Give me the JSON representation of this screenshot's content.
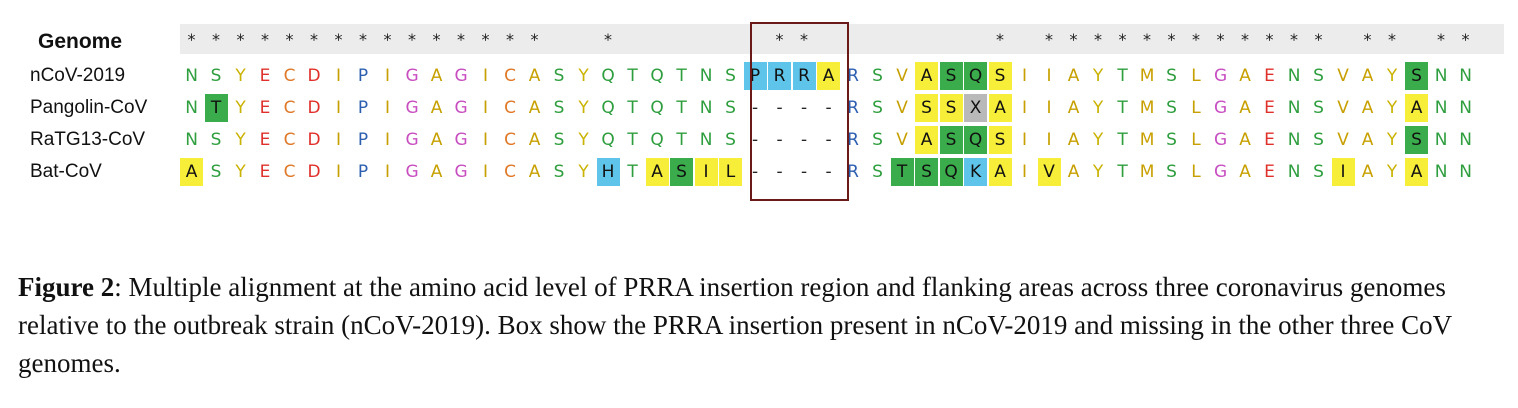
{
  "header_label": "Genome",
  "conservation": "***************  *      **       * ************ ** **",
  "sequences": [
    {
      "name": "nCoV-2019",
      "residues": "NSYECDIPIGAGICASYQTQTNSPRRARSVASQSIIAYTMSLGAENSVAYSNN"
    },
    {
      "name": "Pangolin-CoV",
      "residues": "NTYECDIPIGAGICASYQTQTNS----RSVSSXAIIAYTMSLGAENSVAYANN"
    },
    {
      "name": "RaTG13-CoV",
      "residues": "NSYECDIPIGAGICASYQTQTNS----RSVASQSIIAYTMSLGAENSVAYSNN"
    },
    {
      "name": "Bat-CoV",
      "residues": "ASYECDIPIGAGICASYHTASIL----RSTSQKAIVAYTMSLGAENSIAYANN"
    }
  ],
  "highlights": {
    "nCoV-2019": {
      "23": "blue",
      "24": "blue",
      "25": "blue",
      "26": "yellow",
      "30": "yellow",
      "31": "green",
      "32": "green",
      "33": "yellow",
      "50": "green"
    },
    "Pangolin-CoV": {
      "1": "green",
      "30": "yellow",
      "31": "yellow",
      "32": "grey",
      "33": "yellow",
      "50": "yellow"
    },
    "RaTG13-CoV": {
      "30": "yellow",
      "31": "green",
      "32": "green",
      "33": "yellow",
      "50": "green"
    },
    "Bat-CoV": {
      "0": "yellow",
      "17": "blue",
      "19": "yellow",
      "20": "green",
      "21": "yellow",
      "22": "yellow",
      "29": "green",
      "30": "green",
      "31": "green",
      "32": "blue",
      "33": "yellow",
      "35": "yellow",
      "47": "yellow",
      "50": "yellow"
    }
  },
  "colors": {
    "highlight": {
      "blue": "#5ec4ea",
      "yellow": "#f7ee3a",
      "green": "#3aac4b",
      "grey": "#b9b9b9"
    },
    "residue": {
      "N": "#2e9e3e",
      "Q": "#2e9e3e",
      "S": "#2e9e3e",
      "T": "#2e9e3e",
      "Y": "#c9b200",
      "H": "#c9b200",
      "A": "#c7a000",
      "V": "#c7a000",
      "I": "#c7a000",
      "L": "#c7a000",
      "M": "#c7a000",
      "W": "#c7a000",
      "F": "#c7a000",
      "E": "#e0302a",
      "D": "#e0302a",
      "C": "#e07a2a",
      "P": "#2d5fb0",
      "G": "#c84fc2",
      "R": "#2d5fb0",
      "K": "#2d5fb0",
      "X": "#444444",
      "-": "#222222"
    }
  },
  "caption": {
    "label": "Figure 2",
    "text": ": Multiple alignment at the amino acid level of PRRA insertion region and flanking areas across three coronavirus genomes relative to the outbreak strain (nCoV-2019). Box show the PRRA insertion present in nCoV-2019 and missing in the other three CoV genomes."
  }
}
